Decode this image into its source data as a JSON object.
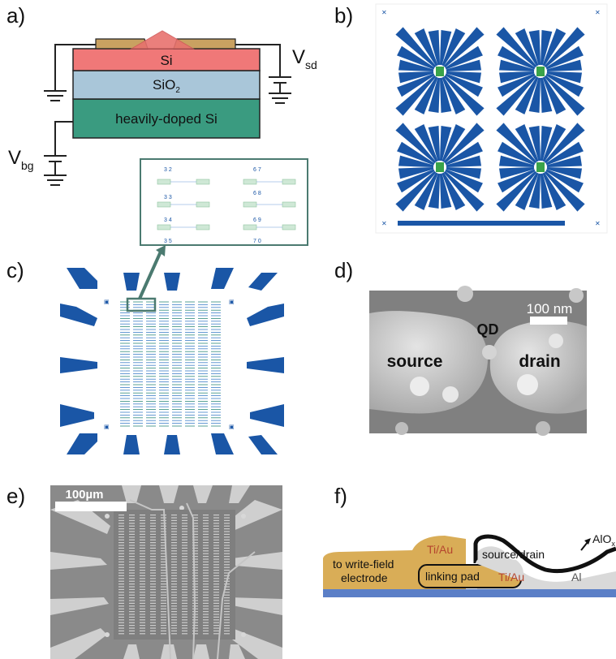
{
  "panels": {
    "a": "a)",
    "b": "b)",
    "c": "c)",
    "d": "d)",
    "e": "e)",
    "f": "f)"
  },
  "panel_a": {
    "layers": [
      "Si",
      "SiO",
      "heavily-doped Si"
    ],
    "sio2_subscript": "2",
    "vsd_main": "V",
    "vsd_sub": "sd",
    "vbg_main": "V",
    "vbg_sub": "bg"
  },
  "panel_c_inset": {
    "labels_left": [
      "3 2",
      "3 3",
      "3 4",
      "3 5"
    ],
    "labels_right": [
      "6 7",
      "6 8",
      "6 9",
      "7 0"
    ]
  },
  "panel_d": {
    "scale": "100 nm",
    "qd": "QD",
    "source": "source",
    "drain": "drain"
  },
  "panel_e": {
    "scale": "100µm"
  },
  "panel_f": {
    "write_field": [
      "to write-field",
      "electrode"
    ],
    "tiau_top": "Ti/Au",
    "source_drain": "source/drain",
    "linking_pad": "linking pad",
    "tiau_bottom": "Ti/Au",
    "al": "Al",
    "alox": "AlO"
  },
  "colors": {
    "electrode_blue": "#1a56a6",
    "si_red": "#f07878",
    "sio2_blue": "#a9c6d9",
    "doped_green": "#3a9b80",
    "gold": "#c9a161",
    "gold_f": "#d9ad57",
    "al_gray": "#d9d9d9",
    "substrate_blue": "#5b7fc7"
  }
}
